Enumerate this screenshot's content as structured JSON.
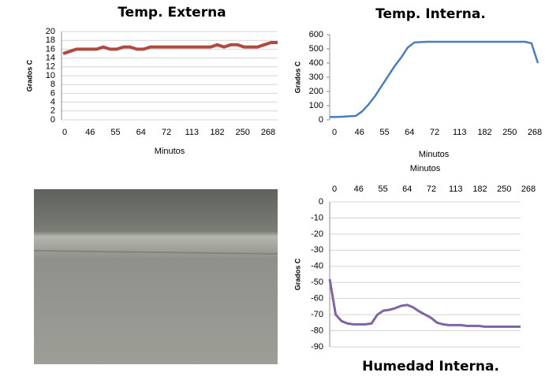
{
  "chart_data": [
    {
      "type": "line",
      "title": "Temp. Externa",
      "xlabel": "Minutos",
      "ylabel": "Grados C",
      "categories": [
        "0",
        null,
        null,
        null,
        "46",
        null,
        null,
        null,
        "55",
        null,
        null,
        null,
        "64",
        null,
        null,
        null,
        "72",
        null,
        null,
        null,
        "113",
        null,
        null,
        null,
        "182",
        null,
        null,
        null,
        "250",
        null,
        null,
        null,
        "268"
      ],
      "values": [
        15,
        15.5,
        16,
        16,
        16,
        16,
        16.5,
        16,
        16,
        16.5,
        16.5,
        16,
        16,
        16.5,
        16.5,
        16.5,
        16.5,
        16.5,
        16.5,
        16.5,
        16.5,
        16.5,
        16.5,
        17,
        16.5,
        17,
        17,
        16.5,
        16.5,
        16.5,
        17,
        17.5,
        17.5
      ],
      "color": "#b04a3e",
      "ylim": [
        0,
        20
      ],
      "yticks": [
        0,
        2,
        4,
        6,
        8,
        10,
        12,
        14,
        16,
        18,
        20
      ],
      "grid": true
    },
    {
      "type": "line",
      "title": "Temp. Interna.",
      "xlabel": "Minutos",
      "ylabel": "Grados C",
      "categories": [
        "0",
        null,
        null,
        null,
        "46",
        null,
        null,
        null,
        "55",
        null,
        null,
        null,
        "64",
        null,
        null,
        null,
        "72",
        null,
        null,
        null,
        "113",
        null,
        null,
        null,
        "182",
        null,
        null,
        null,
        "250",
        null,
        null,
        null,
        "268"
      ],
      "values": [
        20,
        20,
        22,
        25,
        28,
        60,
        110,
        170,
        240,
        310,
        380,
        440,
        510,
        545,
        548,
        550,
        550,
        550,
        550,
        550,
        550,
        550,
        550,
        550,
        550,
        550,
        550,
        550,
        550,
        550,
        550,
        540,
        400
      ],
      "color": "#4a7ebb",
      "ylim": [
        0,
        600
      ],
      "yticks": [
        0,
        100,
        200,
        300,
        400,
        500,
        600
      ],
      "grid": false
    },
    {
      "type": "line",
      "title": "Humedad Interna.",
      "xlabel": "Minutos",
      "ylabel": "Grados C",
      "categories": [
        "0",
        null,
        null,
        null,
        "46",
        null,
        null,
        null,
        "55",
        null,
        null,
        null,
        "64",
        null,
        null,
        null,
        "72",
        null,
        null,
        null,
        "113",
        null,
        null,
        null,
        "182",
        null,
        null,
        null,
        "250",
        null,
        null,
        null,
        "268"
      ],
      "values": [
        -48,
        -70,
        -74,
        -75.5,
        -76,
        -76,
        -76,
        -75.5,
        -70,
        -67.5,
        -67,
        -66,
        -64.5,
        -64,
        -65.5,
        -68,
        -70,
        -72,
        -75,
        -76,
        -76.5,
        -76.5,
        -76.5,
        -77,
        -77,
        -77,
        -77.5,
        -77.5,
        -77.5,
        -77.5,
        -77.5,
        -77.5,
        -77.5
      ],
      "color": "#8064a2",
      "ylim": [
        -90,
        0
      ],
      "yticks": [
        0,
        -10,
        -20,
        -30,
        -40,
        -50,
        -60,
        -70,
        -80,
        -90
      ],
      "grid": true
    }
  ]
}
